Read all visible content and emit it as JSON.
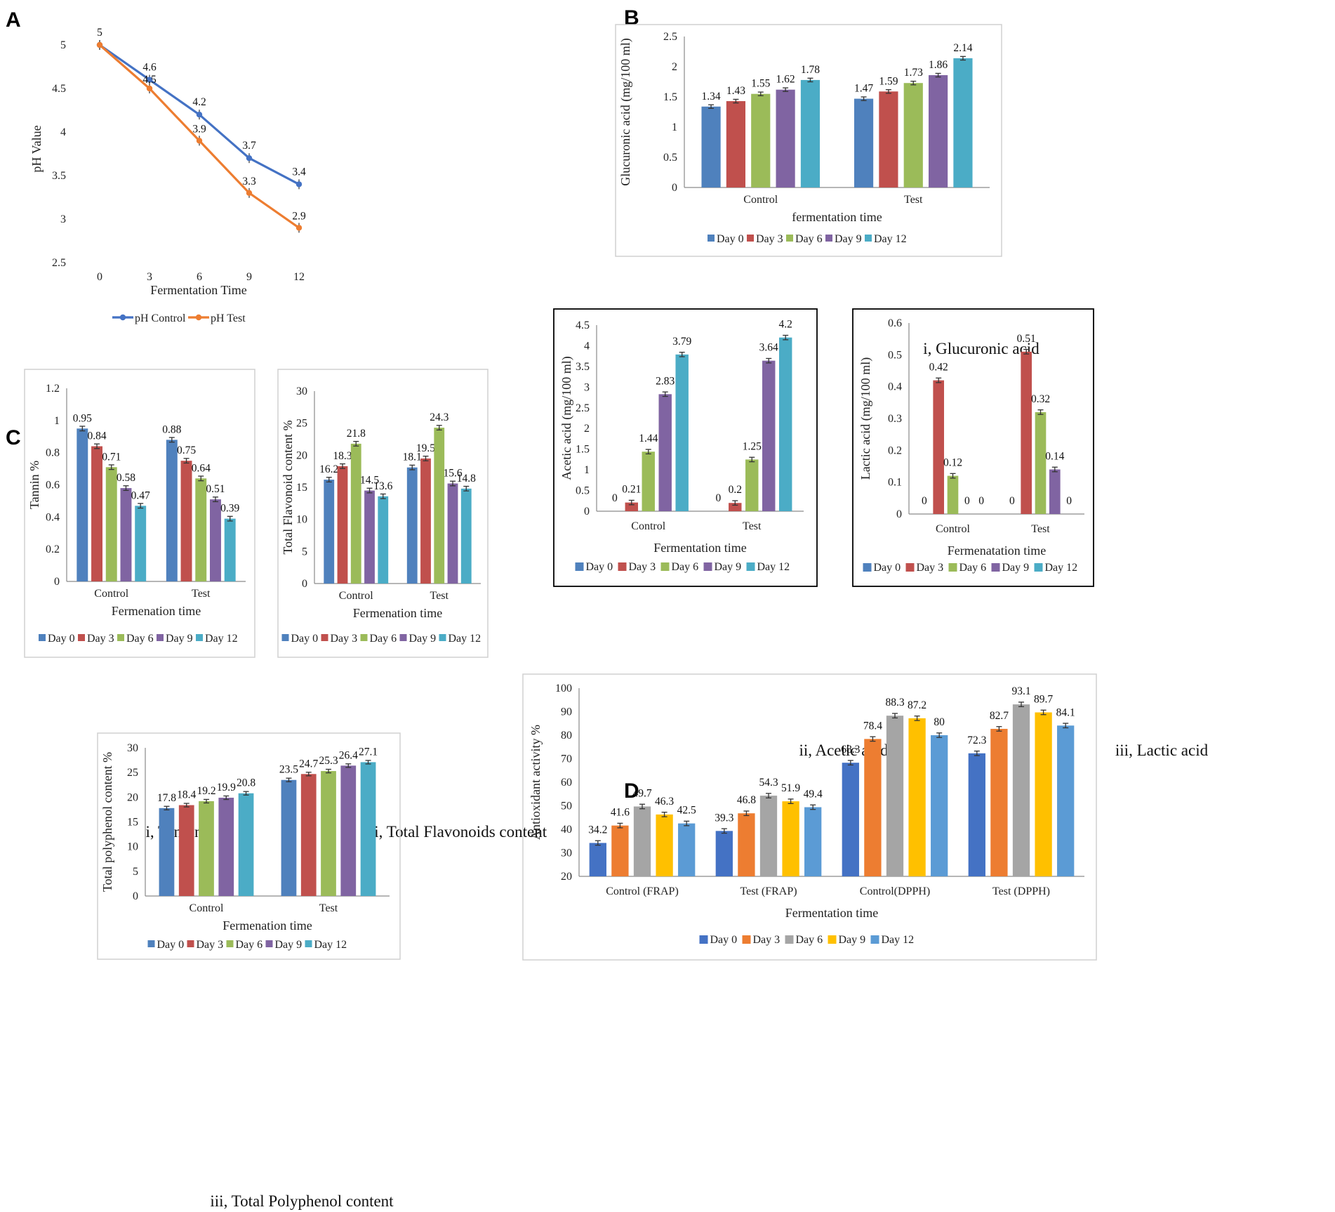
{
  "panel_labels": {
    "A": "A",
    "B": "B",
    "C": "C",
    "D": "D"
  },
  "captions": {
    "b1": "i, Glucuronic acid",
    "b2": "ii, Acetic acid",
    "b3": "iii, Lactic acid",
    "c1": "i, Tannin",
    "c2": "ii, Total Flavonoids content",
    "c3": "iii, Total Polyphenol content"
  },
  "colors": {
    "office": [
      "#4F81BD",
      "#C0504D",
      "#9BBB59",
      "#8064A2",
      "#4BACC6"
    ],
    "office2": [
      "#4472C4",
      "#ED7D31",
      "#A5A5A5",
      "#FFC000",
      "#5B9BD5"
    ],
    "ph_control": "#4472C4",
    "ph_test": "#ED7D31"
  },
  "chart_data": [
    {
      "id": "A",
      "type": "line",
      "x": [
        0,
        3,
        6,
        9,
        12
      ],
      "x_tick_labels": [
        "0",
        "3",
        "6",
        "9",
        "12"
      ],
      "series": [
        {
          "name": "pH Control",
          "values": [
            5,
            4.6,
            4.2,
            3.7,
            3.4
          ],
          "labels": [
            "5",
            "4.6",
            "4.2",
            "3.7",
            "3.4"
          ]
        },
        {
          "name": "pH Test",
          "values": [
            5,
            4.5,
            3.9,
            3.3,
            2.9
          ],
          "labels": [
            "",
            "4.5",
            "3.9",
            "3.3",
            "2.9"
          ]
        }
      ],
      "ylim": [
        2.5,
        5
      ],
      "yticks": [
        2.5,
        3,
        3.5,
        4,
        4.5,
        5
      ],
      "ytick_labels": [
        "2.5",
        "3",
        "3.5",
        "4",
        "4.5",
        "5"
      ],
      "xlabel": "Fermentation Time",
      "ylabel": "pH Value",
      "legend": [
        "pH Control",
        "pH Test"
      ]
    },
    {
      "id": "B1",
      "type": "bar",
      "categories": [
        "Control",
        "Test"
      ],
      "series": [
        {
          "name": "Day 0",
          "values": [
            1.34,
            1.47
          ]
        },
        {
          "name": "Day 3",
          "values": [
            1.43,
            1.59
          ]
        },
        {
          "name": "Day 6",
          "values": [
            1.55,
            1.73
          ]
        },
        {
          "name": "Day 9",
          "values": [
            1.62,
            1.86
          ]
        },
        {
          "name": "Day 12",
          "values": [
            1.78,
            2.14
          ]
        }
      ],
      "ylim": [
        0,
        2.5
      ],
      "yticks": [
        0,
        0.5,
        1,
        1.5,
        2,
        2.5
      ],
      "ytick_labels": [
        "0",
        "0.5",
        "1",
        "1.5",
        "2",
        "2.5"
      ],
      "xlabel": "fermentation time",
      "ylabel": "Glucuronic acid (mg/100 ml)",
      "legend": [
        "Day 0",
        "Day 3",
        "Day 6",
        "Day 9",
        "Day 12"
      ]
    },
    {
      "id": "B2",
      "type": "bar",
      "categories": [
        "Control",
        "Test"
      ],
      "series": [
        {
          "name": "Day 0",
          "values": [
            0,
            0
          ]
        },
        {
          "name": "Day 3",
          "values": [
            0.21,
            0.2
          ]
        },
        {
          "name": "Day 6",
          "values": [
            1.44,
            1.25
          ]
        },
        {
          "name": "Day 9",
          "values": [
            2.83,
            3.64
          ]
        },
        {
          "name": "Day 12",
          "values": [
            3.79,
            4.2
          ]
        }
      ],
      "ylim": [
        0,
        4.5
      ],
      "yticks": [
        0,
        0.5,
        1,
        1.5,
        2,
        2.5,
        3,
        3.5,
        4,
        4.5
      ],
      "ytick_labels": [
        "0",
        "0.5",
        "1",
        "1.5",
        "2",
        "2.5",
        "3",
        "3.5",
        "4",
        "4.5"
      ],
      "xlabel": "Fermentation time",
      "ylabel": "Acetic acid (mg/100 ml)",
      "legend": [
        "Day 0",
        "Day 3",
        "Day 6",
        "Day 9",
        "Day 12"
      ]
    },
    {
      "id": "B3",
      "type": "bar",
      "categories": [
        "Control",
        "Test"
      ],
      "series": [
        {
          "name": "Day 0",
          "values": [
            0,
            0
          ]
        },
        {
          "name": "Day 3",
          "values": [
            0.42,
            0.51
          ]
        },
        {
          "name": "Day 6",
          "values": [
            0.12,
            0.32
          ]
        },
        {
          "name": "Day 9",
          "values": [
            0,
            0.14
          ]
        },
        {
          "name": "Day 12",
          "values": [
            0,
            0
          ]
        }
      ],
      "ylim": [
        0,
        0.6
      ],
      "yticks": [
        0,
        0.1,
        0.2,
        0.3,
        0.4,
        0.5,
        0.6
      ],
      "ytick_labels": [
        "0",
        "0.1",
        "0.2",
        "0.3",
        "0.4",
        "0.5",
        "0.6"
      ],
      "xlabel": "Fermenatation time",
      "ylabel": "Lactic acid (mg/100 ml)",
      "legend": [
        "Day 0",
        "Day 3",
        "Day 6",
        "Day 9",
        "Day 12"
      ]
    },
    {
      "id": "C1",
      "type": "bar",
      "categories": [
        "Control",
        "Test"
      ],
      "series": [
        {
          "name": "Day 0",
          "values": [
            0.95,
            0.88
          ]
        },
        {
          "name": "Day 3",
          "values": [
            0.84,
            0.75
          ]
        },
        {
          "name": "Day 6",
          "values": [
            0.71,
            0.64
          ]
        },
        {
          "name": "Day 9",
          "values": [
            0.58,
            0.51
          ]
        },
        {
          "name": "Day 12",
          "values": [
            0.47,
            0.39
          ]
        }
      ],
      "ylim": [
        0,
        1.2
      ],
      "yticks": [
        0,
        0.2,
        0.4,
        0.6,
        0.8,
        1,
        1.2
      ],
      "ytick_labels": [
        "0",
        "0.2",
        "0.4",
        "0.6",
        "0.8",
        "1",
        "1.2"
      ],
      "xlabel": "Fermenation time",
      "ylabel": "Tannin %",
      "legend": [
        "Day 0",
        "Day 3",
        "Day 6",
        "Day 9",
        "Day 12"
      ]
    },
    {
      "id": "C2",
      "type": "bar",
      "categories": [
        "Control",
        "Test"
      ],
      "series": [
        {
          "name": "Day 0",
          "values": [
            16.2,
            18.1
          ]
        },
        {
          "name": "Day 3",
          "values": [
            18.3,
            19.5
          ]
        },
        {
          "name": "Day 6",
          "values": [
            21.8,
            24.3
          ]
        },
        {
          "name": "Day 9",
          "values": [
            14.5,
            15.6
          ]
        },
        {
          "name": "Day 12",
          "values": [
            13.6,
            14.8
          ]
        }
      ],
      "ylim": [
        0,
        30
      ],
      "yticks": [
        0,
        5,
        10,
        15,
        20,
        25,
        30
      ],
      "ytick_labels": [
        "0",
        "5",
        "10",
        "15",
        "20",
        "25",
        "30"
      ],
      "xlabel": "Fermenation time",
      "ylabel": "Total Flavonoid content %",
      "legend": [
        "Day 0",
        "Day 3",
        "Day 6",
        "Day 9",
        "Day 12"
      ]
    },
    {
      "id": "C3",
      "type": "bar",
      "categories": [
        "Control",
        "Test"
      ],
      "series": [
        {
          "name": "Day 0",
          "values": [
            17.8,
            23.5
          ]
        },
        {
          "name": "Day 3",
          "values": [
            18.4,
            24.7
          ]
        },
        {
          "name": "Day 6",
          "values": [
            19.2,
            25.3
          ]
        },
        {
          "name": "Day 9",
          "values": [
            19.9,
            26.4
          ]
        },
        {
          "name": "Day 12",
          "values": [
            20.8,
            27.1
          ]
        }
      ],
      "ylim": [
        0,
        30
      ],
      "yticks": [
        0,
        5,
        10,
        15,
        20,
        25,
        30
      ],
      "ytick_labels": [
        "0",
        "5",
        "10",
        "15",
        "20",
        "25",
        "30"
      ],
      "xlabel": "Fermenation time",
      "ylabel": "Total polyphenol content %",
      "legend": [
        "Day 0",
        "Day 3",
        "Day 6",
        "Day 9",
        "Day 12"
      ]
    },
    {
      "id": "D",
      "type": "bar",
      "categories": [
        "Control (FRAP)",
        "Test (FRAP)",
        "Control(DPPH)",
        "Test (DPPH)"
      ],
      "series": [
        {
          "name": "Day 0",
          "values": [
            34.2,
            39.3,
            68.3,
            72.3
          ]
        },
        {
          "name": "Day 3",
          "values": [
            41.6,
            46.8,
            78.4,
            82.7
          ]
        },
        {
          "name": "Day 6",
          "values": [
            49.7,
            54.3,
            88.3,
            93.1
          ]
        },
        {
          "name": "Day 9",
          "values": [
            46.3,
            51.9,
            87.2,
            89.7
          ]
        },
        {
          "name": "Day 12",
          "values": [
            42.5,
            49.4,
            80,
            84.1
          ]
        }
      ],
      "ylim": [
        20,
        100
      ],
      "yticks": [
        20,
        30,
        40,
        50,
        60,
        70,
        80,
        90,
        100
      ],
      "ytick_labels": [
        "20",
        "30",
        "40",
        "50",
        "60",
        "70",
        "80",
        "90",
        "100"
      ],
      "xlabel": "Fermentation time",
      "ylabel": "Antioxidant  activity %",
      "legend": [
        "Day 0",
        "Day 3",
        "Day 6",
        "Day 9",
        "Day 12"
      ]
    }
  ]
}
